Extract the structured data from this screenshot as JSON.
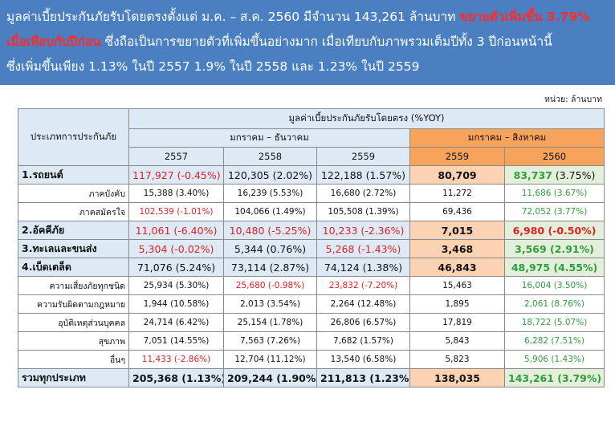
{
  "banner": {
    "line1_a": "มูลค่าเบี้ยประกันภัยรับโดยตรงตั้งแต่ ม.ค. – ส.ค. 2560 มีจำนวน 143,261 ล้านบาท ",
    "line1_b": "ขยายตัวเพิ่มขึ้น 3.79%",
    "line2_a": "เมื่อเทียบกับปีก่อน",
    "line2_b": " ซึ่งถือเป็นการขยายตัวที่เพิ่มขึ้นอย่างมาก เมื่อเทียบกับภาพรวมเต็มปีทั้ง 3 ปีก่อนหน้านี้",
    "line3": "ซึ่งเพิ่มขึ้นเพียง 1.13% ในปี 2557 1.9% ในปี 2558 และ 1.23% ในปี 2559"
  },
  "unit_label": "หน่วย: ล้านบาท",
  "colors": {
    "banner_bg": "#4a7fc1",
    "header_blue": "#ddeaf5",
    "header_orange": "#f7a35c",
    "neg": "#e02020",
    "pos": "#2e9e3a"
  },
  "table": {
    "type_header": "ประเภทการประกันภัย",
    "value_header": "มูลค่าเบี้ยประกันภัยรับโดยตรง (%YOY)",
    "period_full": "มกราคม – ธันวาคม",
    "period_partial": "มกราคม – สิงหาคม",
    "years": [
      "2557",
      "2558",
      "2559",
      "2559",
      "2560"
    ],
    "rows": [
      {
        "kind": "main",
        "label": "1.รถยนต์",
        "cells": [
          {
            "v": "117,927 (-0.45%)",
            "c": "red"
          },
          {
            "v": "120,305 (2.02%)",
            "c": ""
          },
          {
            "v": "122,188 (1.57%)",
            "c": ""
          },
          {
            "v": "80,709",
            "c": ""
          },
          {
            "v": "83,737",
            "c": "green",
            "p": " (3.75%)"
          }
        ]
      },
      {
        "kind": "sub",
        "label": "ภาคบังคับ",
        "cells": [
          {
            "v": "15,388 (3.40%)",
            "c": ""
          },
          {
            "v": "16,239 (5.53%)",
            "c": ""
          },
          {
            "v": "16,680 (2.72%)",
            "c": ""
          },
          {
            "v": "11,272",
            "c": ""
          },
          {
            "v": "11,686 (3.67%)",
            "c": "green"
          }
        ]
      },
      {
        "kind": "sub",
        "label": "ภาคสมัครใจ",
        "cells": [
          {
            "v": "102,539 (-1.01%)",
            "c": "red"
          },
          {
            "v": "104,066 (1.49%)",
            "c": ""
          },
          {
            "v": "105,508 (1.39%)",
            "c": ""
          },
          {
            "v": "69,436",
            "c": ""
          },
          {
            "v": "72,052 (3.77%)",
            "c": "green"
          }
        ]
      },
      {
        "kind": "main",
        "label": "2.อัคคีภัย",
        "cells": [
          {
            "v": "11,061 (-6.40%)",
            "c": "red"
          },
          {
            "v": "10,480 (-5.25%)",
            "c": "red"
          },
          {
            "v": "10,233 (-2.36%)",
            "c": "red"
          },
          {
            "v": "7,015",
            "c": ""
          },
          {
            "v": "6,980 (-0.50%)",
            "c": "red"
          }
        ]
      },
      {
        "kind": "main",
        "label": "3.ทะเลและขนส่ง",
        "cells": [
          {
            "v": "5,304 (-0.02%)",
            "c": "red"
          },
          {
            "v": "5,344 (0.76%)",
            "c": ""
          },
          {
            "v": "5,268 (-1.43%)",
            "c": "red"
          },
          {
            "v": "3,468",
            "c": ""
          },
          {
            "v": "3,569 (2.91%)",
            "c": "green"
          }
        ]
      },
      {
        "kind": "main",
        "label": "4.เบ็ดเตล็ด",
        "cells": [
          {
            "v": "71,076 (5.24%)",
            "c": ""
          },
          {
            "v": "73,114 (2.87%)",
            "c": ""
          },
          {
            "v": "74,124 (1.38%)",
            "c": ""
          },
          {
            "v": "46,843",
            "c": ""
          },
          {
            "v": "48,975 (4.55%)",
            "c": "green"
          }
        ]
      },
      {
        "kind": "sub",
        "label": "ความเสี่ยงภัยทุกชนิด",
        "cells": [
          {
            "v": "25,934 (5.30%)",
            "c": ""
          },
          {
            "v": "25,680 (-0.98%)",
            "c": "red"
          },
          {
            "v": "23,832 (-7.20%)",
            "c": "red"
          },
          {
            "v": "15,463",
            "c": ""
          },
          {
            "v": "16,004 (3.50%)",
            "c": "green"
          }
        ]
      },
      {
        "kind": "sub",
        "label": "ความรับผิดตามกฎหมาย",
        "cells": [
          {
            "v": "1,944 (10.58%)",
            "c": ""
          },
          {
            "v": "2,013 (3.54%)",
            "c": ""
          },
          {
            "v": "2,264 (12.48%)",
            "c": ""
          },
          {
            "v": "1,895",
            "c": ""
          },
          {
            "v": "2,061 (8.76%)",
            "c": "green"
          }
        ]
      },
      {
        "kind": "sub",
        "label": "อุบัติเหตุส่วนบุคคล",
        "cells": [
          {
            "v": "24,714 (6.42%)",
            "c": ""
          },
          {
            "v": "25,154 (1.78%)",
            "c": ""
          },
          {
            "v": "26,806 (6.57%)",
            "c": ""
          },
          {
            "v": "17,819",
            "c": ""
          },
          {
            "v": "18,722 (5.07%)",
            "c": "green"
          }
        ]
      },
      {
        "kind": "sub",
        "label": "สุขภาพ",
        "cells": [
          {
            "v": "7,051 (14.55%)",
            "c": ""
          },
          {
            "v": "7,563 (7.26%)",
            "c": ""
          },
          {
            "v": "7,682 (1.57%)",
            "c": ""
          },
          {
            "v": "5,843",
            "c": ""
          },
          {
            "v": "6,282 (7.51%)",
            "c": "green"
          }
        ]
      },
      {
        "kind": "sub",
        "label": "อื่นๆ",
        "cells": [
          {
            "v": "11,433 (-2.86%)",
            "c": "red"
          },
          {
            "v": "12,704 (11.12%)",
            "c": ""
          },
          {
            "v": "13,540 (6.58%)",
            "c": ""
          },
          {
            "v": "5,823",
            "c": ""
          },
          {
            "v": "5,906 (1.43%)",
            "c": "green"
          }
        ]
      },
      {
        "kind": "total",
        "label": "รวมทุกประเภท",
        "cells": [
          {
            "v": "205,368 (1.13%)",
            "c": ""
          },
          {
            "v": "209,244 (1.90%)",
            "c": ""
          },
          {
            "v": "211,813 (1.23%)",
            "c": ""
          },
          {
            "v": "138,035",
            "c": ""
          },
          {
            "v": "143,261 (3.79%)",
            "c": "green"
          }
        ]
      }
    ]
  }
}
